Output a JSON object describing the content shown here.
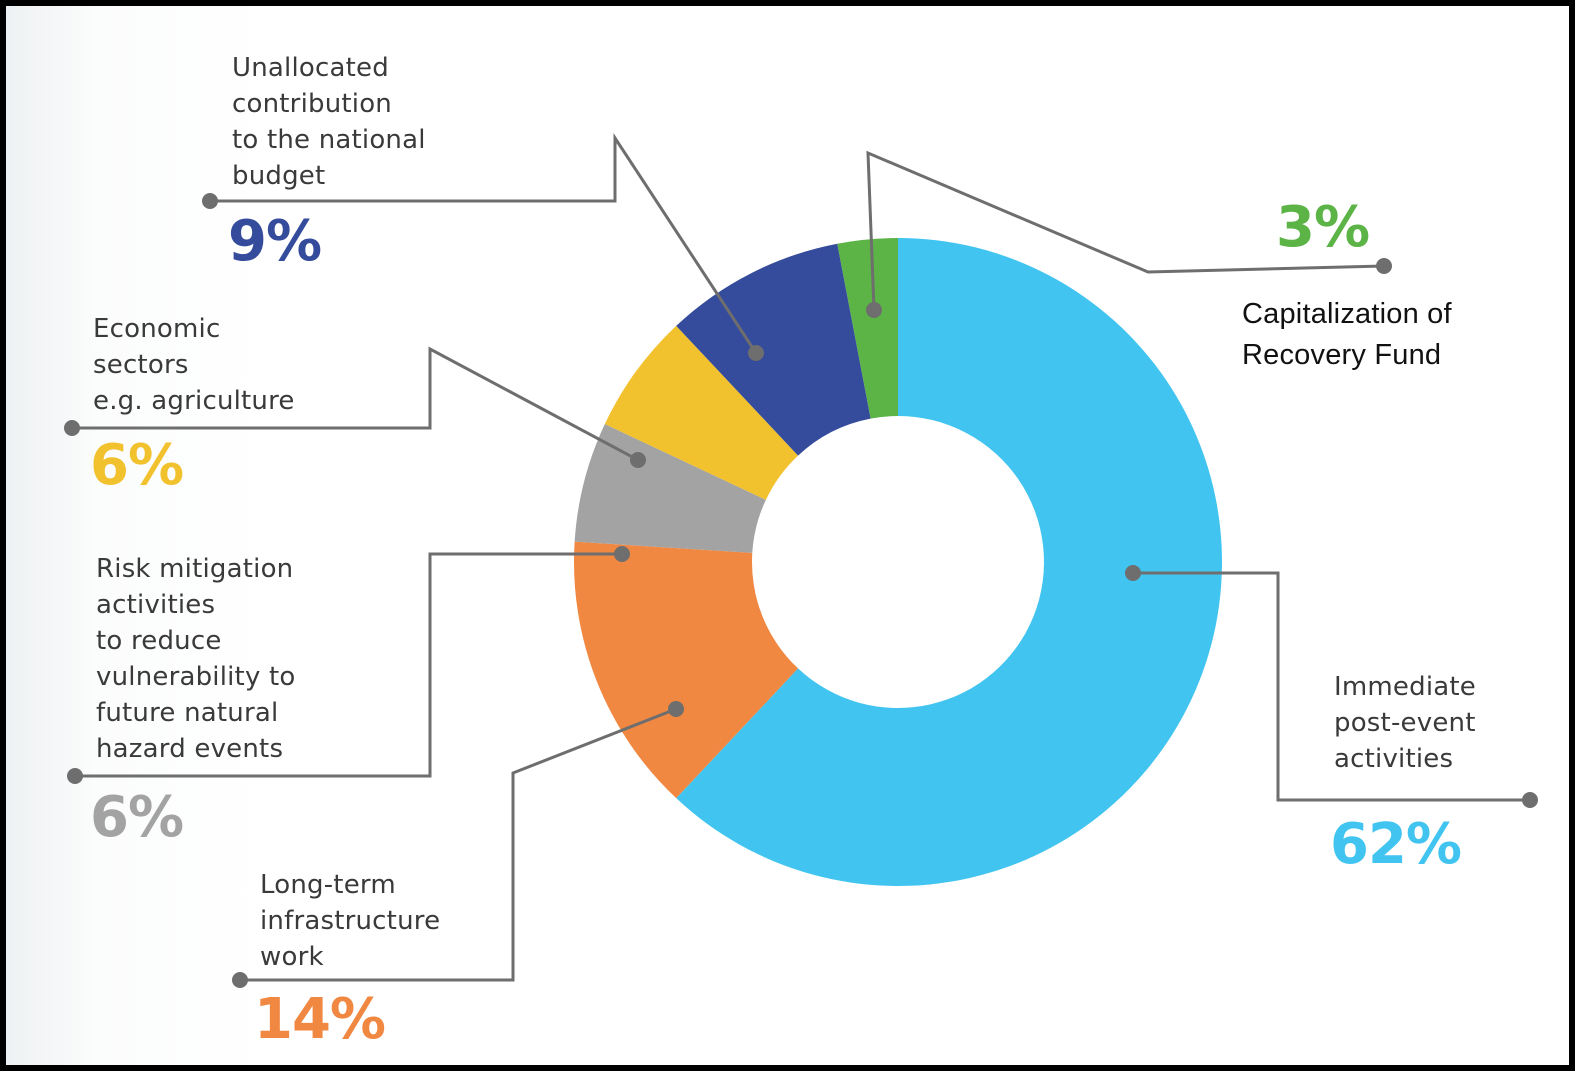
{
  "chart_data": {
    "type": "pie",
    "title": "",
    "slices": [
      {
        "label": "Immediate\npost-event\nactivities",
        "value": 62,
        "value_label": "62%",
        "color": "#42c4f0"
      },
      {
        "label": "Long-term\ninfrastructure\nwork",
        "value": 14,
        "value_label": "14%",
        "color": "#f08842"
      },
      {
        "label": "Risk mitigation\nactivities\nto reduce\nvulnerability to\nfuture natural\nhazard events",
        "value": 6,
        "value_label": "6%",
        "color": "#a3a3a3"
      },
      {
        "label": "Economic\nsectors\ne.g. agriculture",
        "value": 6,
        "value_label": "6%",
        "color": "#f2c12e"
      },
      {
        "label": "Unallocated\ncontribution\nto the national\nbudget",
        "value": 9,
        "value_label": "9%",
        "color": "#354b9b"
      },
      {
        "label": "Capitalization of\nRecovery Fund",
        "value": 3,
        "value_label": "3%",
        "color": "#5cb346"
      }
    ],
    "donut": true,
    "legend": "none",
    "label_style": "callout lines"
  },
  "colors": {
    "leader_line": "#6e6e6e",
    "label_text": "#3a3a3a"
  }
}
